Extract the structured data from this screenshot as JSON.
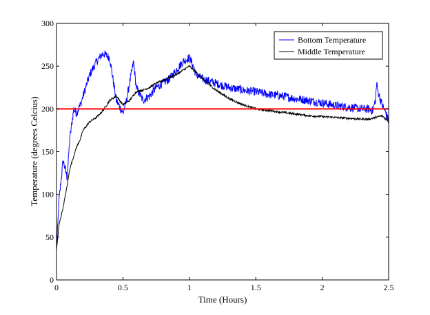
{
  "chart_data": {
    "type": "line",
    "title": "",
    "xlabel": "Time (Hours)",
    "ylabel": "Temperature (degrees Celcius)",
    "xlim": [
      0,
      2.5
    ],
    "ylim": [
      0,
      300
    ],
    "xticks": [
      0,
      0.5,
      1,
      1.5,
      2,
      2.5
    ],
    "xtick_labels": [
      "0",
      "0.5",
      "1",
      "1.5",
      "2",
      "2.5"
    ],
    "yticks": [
      0,
      50,
      100,
      150,
      200,
      250,
      300
    ],
    "ytick_labels": [
      "0",
      "50",
      "100",
      "150",
      "200",
      "250",
      "300"
    ],
    "grid": false,
    "legend_position": "top-right",
    "series": [
      {
        "name": "Bottom Temperature",
        "color": "#0000ff",
        "x": [
          0,
          0.02,
          0.05,
          0.08,
          0.1,
          0.13,
          0.15,
          0.18,
          0.2,
          0.25,
          0.3,
          0.35,
          0.4,
          0.45,
          0.5,
          0.52,
          0.55,
          0.58,
          0.6,
          0.65,
          0.7,
          0.75,
          0.8,
          0.85,
          0.9,
          0.95,
          1.0,
          1.03,
          1.05,
          1.1,
          1.2,
          1.3,
          1.4,
          1.5,
          1.6,
          1.7,
          1.8,
          1.9,
          2.0,
          2.1,
          2.2,
          2.3,
          2.35,
          2.38,
          2.4,
          2.41,
          2.42,
          2.45,
          2.48,
          2.5
        ],
        "y": [
          35,
          95,
          140,
          120,
          165,
          200,
          195,
          205,
          215,
          240,
          255,
          265,
          260,
          210,
          195,
          205,
          230,
          255,
          225,
          210,
          215,
          225,
          230,
          235,
          245,
          255,
          260,
          250,
          240,
          235,
          230,
          225,
          222,
          220,
          217,
          215,
          212,
          210,
          207,
          204,
          202,
          200,
          200,
          198,
          210,
          230,
          220,
          205,
          195,
          185
        ]
      },
      {
        "name": "Middle Temperature",
        "color": "#000000",
        "x": [
          0,
          0.02,
          0.05,
          0.08,
          0.1,
          0.13,
          0.15,
          0.18,
          0.2,
          0.25,
          0.3,
          0.35,
          0.4,
          0.45,
          0.5,
          0.55,
          0.6,
          0.65,
          0.7,
          0.75,
          0.8,
          0.85,
          0.9,
          0.95,
          1.0,
          1.05,
          1.1,
          1.2,
          1.3,
          1.4,
          1.5,
          1.6,
          1.7,
          1.8,
          1.9,
          2.0,
          2.1,
          2.2,
          2.3,
          2.35,
          2.4,
          2.45,
          2.48,
          2.5
        ],
        "y": [
          35,
          65,
          85,
          110,
          130,
          145,
          155,
          165,
          175,
          185,
          190,
          198,
          210,
          215,
          205,
          210,
          220,
          222,
          225,
          230,
          233,
          237,
          240,
          245,
          250,
          243,
          235,
          222,
          212,
          205,
          200,
          198,
          196,
          194,
          192,
          191,
          190,
          189,
          188,
          188,
          190,
          192,
          188,
          186
        ]
      }
    ],
    "reference_lines": [
      {
        "axis": "y",
        "value": 200,
        "color": "#ff0000"
      }
    ]
  }
}
